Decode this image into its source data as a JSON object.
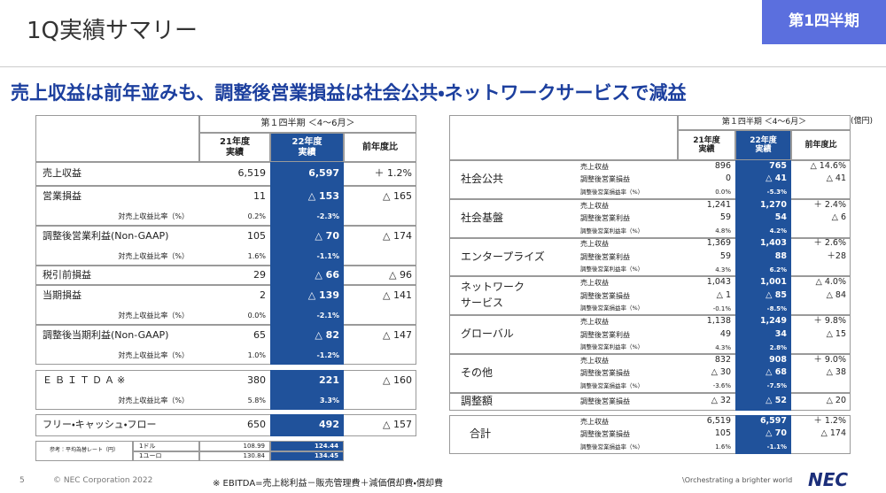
{
  "header": {
    "title": "1Q実績サマリー",
    "badge": "第1四半期"
  },
  "headline": "売上収益は前年並みも、調整後営業損益は社会公共・ネットワークサービスで減益",
  "left_table": {
    "period": "第１四半期 ＜4～6月＞",
    "columns": [
      "21年度\n実績",
      "22年度\n実績",
      "前年度比"
    ],
    "rows": [
      {
        "label": "売上収益",
        "v21": "6,519",
        "v22": "6,597",
        "diff": "＋ 1.2%"
      },
      {
        "label": "営業損益",
        "v21": "11",
        "v22": "△ 153",
        "diff": "△ 165",
        "sub": {
          "label": "対売上収益比率（%）",
          "v21": "0.2%",
          "v22": "-2.3%"
        }
      },
      {
        "label": "調整後営業利益(Non-GAAP)",
        "v21": "105",
        "v22": "△ 70",
        "diff": "△ 174",
        "sub": {
          "label": "対売上収益比率（%）",
          "v21": "1.6%",
          "v22": "-1.1%"
        }
      },
      {
        "label": "税引前損益",
        "v21": "29",
        "v22": "△ 66",
        "diff": "△ 96"
      },
      {
        "label": "当期損益",
        "v21": "2",
        "v22": "△ 139",
        "diff": "△ 141",
        "sub": {
          "label": "対売上収益比率（%）",
          "v21": "0.0%",
          "v22": "-2.1%"
        }
      },
      {
        "label": "調整後当期利益(Non-GAAP)",
        "v21": "65",
        "v22": "△ 82",
        "diff": "△ 147",
        "sub": {
          "label": "対売上収益比率（%）",
          "v21": "1.0%",
          "v22": "-1.2%"
        }
      },
      {
        "label": "ＥＢＩＴＤＡ※",
        "v21": "380",
        "v22": "221",
        "diff": "△ 160",
        "sub": {
          "label": "対売上収益比率（%）",
          "v21": "5.8%",
          "v22": "3.3%"
        }
      },
      {
        "label": "フリー・キャッシュ・フロー",
        "v21": "650",
        "v22": "492",
        "diff": "△ 157"
      }
    ]
  },
  "rate_table": {
    "label": "参考：平均為替レート（円）",
    "rows": [
      {
        "label": "1ドル",
        "v21": "108.99",
        "v22": "124.44"
      },
      {
        "label": "1ユーロ",
        "v21": "130.84",
        "v22": "134.45"
      }
    ]
  },
  "right_table": {
    "unit": "(億円)",
    "period": "第１四半期 ＜4～6月＞",
    "columns": [
      "21年度\n実績",
      "22年度\n実績",
      "前年度比"
    ],
    "segments": [
      {
        "name": [
          "社会公共"
        ],
        "rows": [
          {
            "label": "売上収益",
            "v21": "896",
            "v22": "765",
            "diff": "△ 14.6%"
          },
          {
            "label": "調整後営業損益",
            "v21": "0",
            "v22": "△ 41",
            "diff": "△ 41"
          },
          {
            "label": "調整後営業損益率（%）",
            "v21": "0.0%",
            "v22": "-5.3%"
          }
        ]
      },
      {
        "name": [
          "社会基盤"
        ],
        "rows": [
          {
            "label": "売上収益",
            "v21": "1,241",
            "v22": "1,270",
            "diff": "＋ 2.4%"
          },
          {
            "label": "調整後営業利益",
            "v21": "59",
            "v22": "54",
            "diff": "△ 6"
          },
          {
            "label": "調整後営業利益率（%）",
            "v21": "4.8%",
            "v22": "4.2%"
          }
        ]
      },
      {
        "name": [
          "エンタープライズ"
        ],
        "rows": [
          {
            "label": "売上収益",
            "v21": "1,369",
            "v22": "1,403",
            "diff": "＋ 2.6%"
          },
          {
            "label": "調整後営業利益",
            "v21": "59",
            "v22": "88",
            "diff": "＋28"
          },
          {
            "label": "調整後営業利益率（%）",
            "v21": "4.3%",
            "v22": "6.2%"
          }
        ]
      },
      {
        "name": [
          "ネットワーク",
          "サービス"
        ],
        "rows": [
          {
            "label": "売上収益",
            "v21": "1,043",
            "v22": "1,001",
            "diff": "△ 4.0%"
          },
          {
            "label": "調整後営業損益",
            "v21": "△ 1",
            "v22": "△ 85",
            "diff": "△ 84"
          },
          {
            "label": "調整後営業損益率（%）",
            "v21": "-0.1%",
            "v22": "-8.5%"
          }
        ]
      },
      {
        "name": [
          "グローバル"
        ],
        "rows": [
          {
            "label": "売上収益",
            "v21": "1,138",
            "v22": "1,249",
            "diff": "＋ 9.8%"
          },
          {
            "label": "調整後営業利益",
            "v21": "49",
            "v22": "34",
            "diff": "△ 15"
          },
          {
            "label": "調整後営業利益率（%）",
            "v21": "4.3%",
            "v22": "2.8%"
          }
        ]
      },
      {
        "name": [
          "その他"
        ],
        "rows": [
          {
            "label": "売上収益",
            "v21": "832",
            "v22": "908",
            "diff": "＋ 9.0%"
          },
          {
            "label": "調整後営業損益",
            "v21": "△ 30",
            "v22": "△ 68",
            "diff": "△ 38"
          },
          {
            "label": "調整後営業損益率（%）",
            "v21": "-3.6%",
            "v22": "-7.5%"
          }
        ]
      },
      {
        "name": [
          "調整額"
        ],
        "rows": [
          {
            "label": "調整後営業損益",
            "v21": "△ 32",
            "v22": "△ 52",
            "diff": "△ 20"
          }
        ]
      },
      {
        "name": [
          "合計"
        ],
        "rows": [
          {
            "label": "売上収益",
            "v21": "6,519",
            "v22": "6,597",
            "diff": "＋ 1.2%"
          },
          {
            "label": "調整後営業損益",
            "v21": "105",
            "v22": "△ 70",
            "diff": "△ 174"
          },
          {
            "label": "調整後営業損益率（%）",
            "v21": "1.6%",
            "v22": "-1.1%"
          }
        ]
      }
    ]
  },
  "footer": {
    "page": "5",
    "copyright": "© NEC Corporation 2022",
    "note": "※ EBITDA=売上総利益－販売管理費＋減価償却費・償却費",
    "tagline": "\\Orchestrating a brighter world",
    "logo": "NEC"
  }
}
